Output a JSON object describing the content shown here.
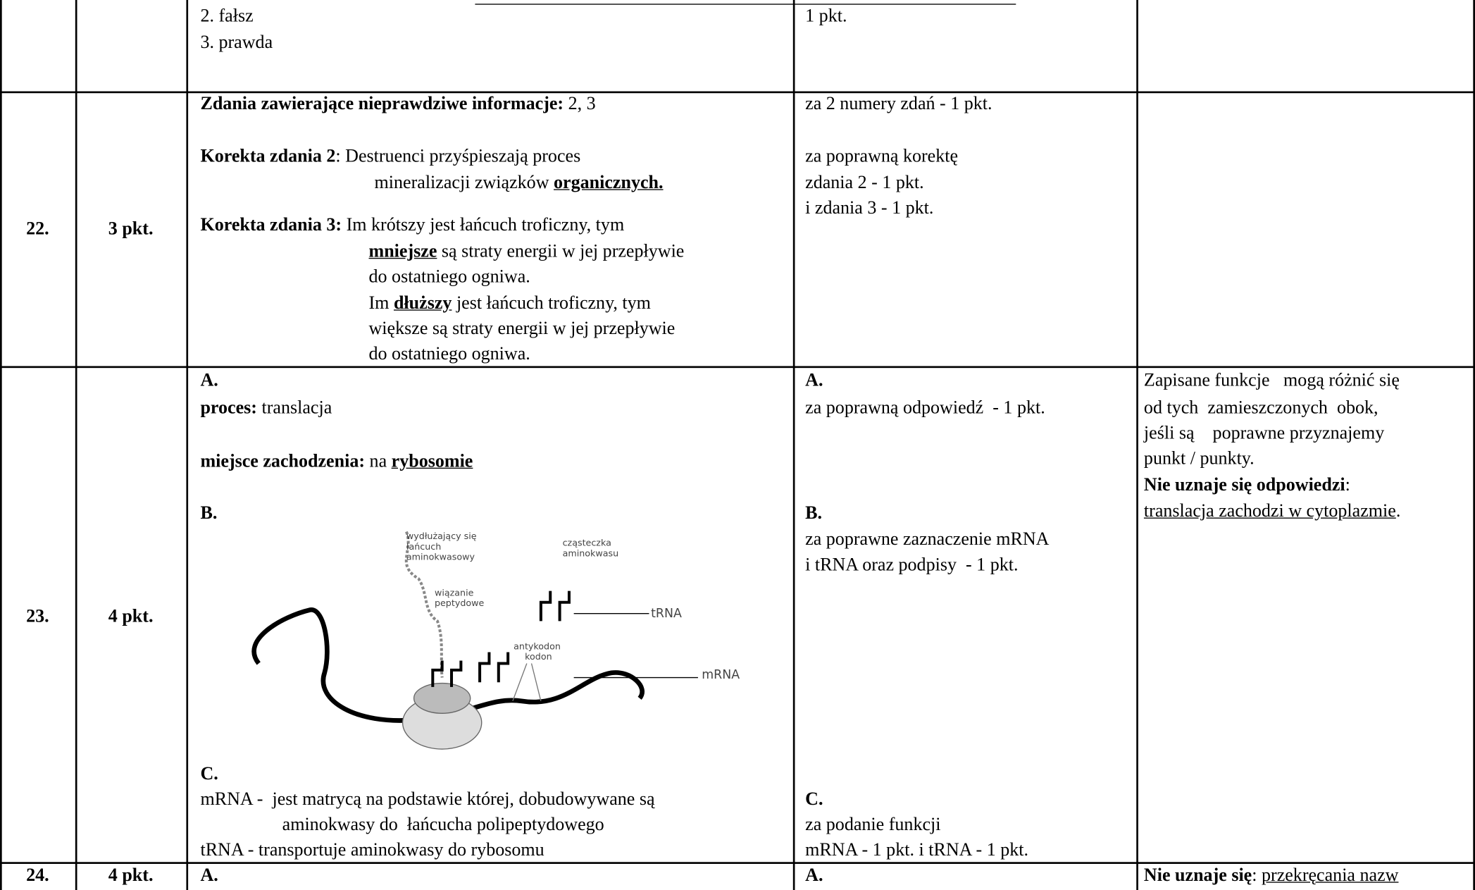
{
  "table": {
    "rows": [
      {
        "cells": [
          [],
          [],
          [
            [
              {
                "text": "2. fałsz"
              }
            ],
            [
              {
                "text": "3. prawda"
              }
            ]
          ],
          [
            [
              {
                "text": "1 pkt."
              }
            ]
          ],
          []
        ]
      },
      {
        "cells": [
          [
            [
              {
                "text": "22.",
                "style": "bold"
              }
            ]
          ],
          [
            [
              {
                "text": "3 pkt.",
                "style": "bold"
              }
            ]
          ],
          [
            [
              {
                "text": "Zdania zawierające nieprawdziwe informacje:",
                "style": "bold"
              },
              {
                "text": " 2, 3"
              }
            ],
            [
              {
                "text": "Korekta zdania 2",
                "style": "bold"
              },
              {
                "text": ": Destruenci przyśpieszają proces"
              }
            ],
            [
              {
                "text": "mineralizacji związków "
              },
              {
                "text": "organicznych.",
                "style": "bold-underline"
              }
            ],
            [
              {
                "text": "Korekta zdania 3:",
                "style": "bold"
              },
              {
                "text": " Im krótszy jest łańcuch troficzny, tym"
              }
            ],
            [
              {
                "text": "mniejsze",
                "style": "bold-underline"
              },
              {
                "text": " są straty energii w jej przepływie"
              }
            ],
            [
              {
                "text": "do ostatniego ogniwa."
              }
            ],
            [
              {
                "text": "Im "
              },
              {
                "text": "dłuższy",
                "style": "bold-underline"
              },
              {
                "text": " jest łańcuch troficzny, tym"
              }
            ],
            [
              {
                "text": "większe są straty energii w jej przepływie"
              }
            ],
            [
              {
                "text": "do ostatniego ogniwa."
              }
            ]
          ],
          [
            [
              {
                "text": "za 2 numery zdań - 1 pkt."
              }
            ],
            [
              {
                "text": "za poprawną korektę"
              }
            ],
            [
              {
                "text": "zdania 2 - 1 pkt."
              }
            ],
            [
              {
                "text": "i zdania 3 - 1 pkt."
              }
            ]
          ],
          []
        ]
      },
      {
        "cells": [
          [
            [
              {
                "text": "23.",
                "style": "bold"
              }
            ]
          ],
          [
            [
              {
                "text": "4 pkt.",
                "style": "bold"
              }
            ]
          ],
          [
            [
              {
                "text": "A.",
                "style": "bold"
              }
            ],
            [
              {
                "text": "proces:",
                "style": "bold"
              },
              {
                "text": " translacja"
              }
            ],
            [
              {
                "text": "miejsce zachodzenia:",
                "style": "bold"
              },
              {
                "text": " na "
              },
              {
                "text": "rybosomie",
                "style": "bold-underline"
              }
            ],
            [
              {
                "text": "B.",
                "style": "bold"
              }
            ],
            [
              {
                "text": "C.",
                "style": "bold"
              }
            ],
            [
              {
                "text": "mRNA -  jest matrycą na podstawie której, dobudowywane są"
              }
            ],
            [
              {
                "text": "aminokwasy do  łańcucha polipeptydowego"
              }
            ],
            [
              {
                "text": "tRNA - transportuje aminokwasy do rybosomu"
              }
            ]
          ],
          [
            [
              {
                "text": "A.",
                "style": "bold"
              }
            ],
            [
              {
                "text": "za poprawną odpowiedź  - 1 pkt."
              }
            ],
            [
              {
                "text": "B.",
                "style": "bold"
              }
            ],
            [
              {
                "text": "za poprawne zaznaczenie mRNA"
              }
            ],
            [
              {
                "text": "i tRNA oraz podpisy  - 1 pkt."
              }
            ],
            [
              {
                "text": "C.",
                "style": "bold"
              }
            ],
            [
              {
                "text": "za podanie funkcji"
              }
            ],
            [
              {
                "text": "mRNA - 1 pkt. i tRNA - 1 pkt."
              }
            ]
          ],
          [
            [
              {
                "text": "Zapisane funkcje   mogą różnić się"
              }
            ],
            [
              {
                "text": "od tych  zamieszczonych  obok,"
              }
            ],
            [
              {
                "text": "jeśli są    poprawne przyznajemy"
              }
            ],
            [
              {
                "text": "punkt / punkty."
              }
            ],
            [
              {
                "text": "Nie uznaje się odpowiedzi",
                "style": "bold"
              },
              {
                "text": ":"
              }
            ],
            [
              {
                "text": "translacja zachodzi w cytoplazmie",
                "style": "underline"
              },
              {
                "text": "."
              }
            ]
          ]
        ],
        "figure": {
          "labels": [
            {
              "lines": [
                "wydłużający się",
                "łańcuch",
                "aminokwasowy"
              ]
            },
            {
              "lines": [
                "cząsteczka",
                "aminokwasu"
              ]
            },
            {
              "lines": [
                "wiązanie",
                "peptydowe"
              ]
            },
            {
              "lines": [
                "tRNA"
              ]
            },
            {
              "lines": [
                "antykodon",
                "kodon"
              ]
            },
            {
              "lines": [
                "mRNA"
              ]
            }
          ]
        }
      },
      {
        "cells": [
          [
            [
              {
                "text": "24.",
                "style": "bold"
              }
            ]
          ],
          [
            [
              {
                "text": "4 pkt.",
                "style": "bold"
              }
            ]
          ],
          [
            [
              {
                "text": "A.",
                "style": "bold"
              }
            ]
          ],
          [
            [
              {
                "text": "A.",
                "style": "bold"
              }
            ]
          ],
          [
            [
              {
                "text": "Nie uznaje się",
                "style": "bold"
              },
              {
                "text": ": "
              },
              {
                "text": "przekręcania nazw",
                "style": "underline"
              }
            ]
          ]
        ]
      }
    ]
  }
}
